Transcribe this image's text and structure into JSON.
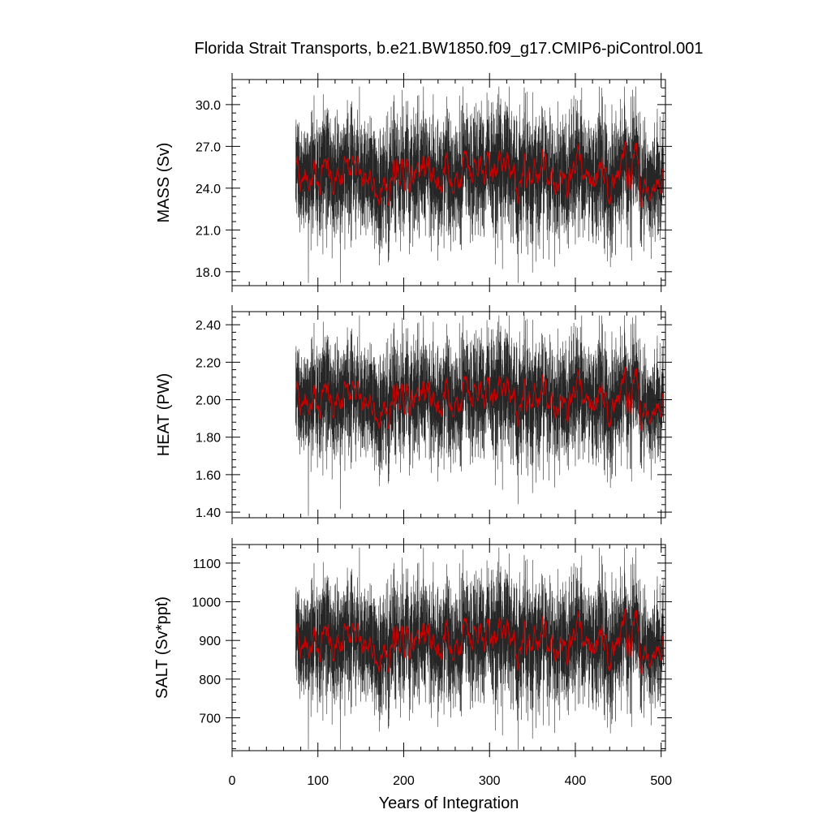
{
  "figure": {
    "title": "Florida Strait Transports, b.e21.BW1850.f09_g17.CMIP6-piControl.001",
    "xlabel": "Years of Integration"
  },
  "colors": {
    "raw_series": "#000000",
    "smoothed_series": "#cc0000",
    "frame": "#000000",
    "background": "#ffffff"
  },
  "chart_data": [
    {
      "type": "line",
      "ylabel": "MASS (Sv)",
      "xlim": [
        0,
        505
      ],
      "ylim": [
        17.0,
        31.8
      ],
      "xticks": [
        0,
        100,
        200,
        300,
        400,
        500
      ],
      "yticks": [
        18.0,
        21.0,
        24.0,
        27.0,
        30.0
      ],
      "ytick_labels": [
        "18.0",
        "21.0",
        "24.0",
        "27.0",
        "30.0"
      ],
      "x_start": 74,
      "x_end": 503,
      "mean": 25.2,
      "raw_spread": 2.1,
      "smooth_spread": 0.7,
      "raw_min": 17.2,
      "raw_max": 31.3,
      "series": [
        {
          "role": "raw",
          "name": ""
        },
        {
          "role": "smoothed",
          "name": ""
        }
      ],
      "grid": false
    },
    {
      "type": "line",
      "ylabel": "HEAT (PW)",
      "xlim": [
        0,
        505
      ],
      "ylim": [
        1.37,
        2.47
      ],
      "xticks": [
        0,
        100,
        200,
        300,
        400,
        500
      ],
      "yticks": [
        1.4,
        1.6,
        1.8,
        2.0,
        2.2,
        2.4
      ],
      "ytick_labels": [
        "1.40",
        "1.60",
        "1.80",
        "2.00",
        "2.20",
        "2.40"
      ],
      "x_start": 74,
      "x_end": 503,
      "mean": 2.02,
      "raw_spread": 0.15,
      "smooth_spread": 0.05,
      "raw_min": 1.38,
      "raw_max": 2.45,
      "series": [
        {
          "role": "raw",
          "name": ""
        },
        {
          "role": "smoothed",
          "name": ""
        }
      ],
      "grid": false
    },
    {
      "type": "line",
      "ylabel": "SALT (Sv*ppt)",
      "xlim": [
        0,
        505
      ],
      "ylim": [
        615,
        1148
      ],
      "xticks": [
        0,
        100,
        200,
        300,
        400,
        500
      ],
      "yticks": [
        700,
        800,
        900,
        1000,
        1100
      ],
      "ytick_labels": [
        "700",
        "800",
        "900",
        "1000",
        "1100"
      ],
      "x_start": 74,
      "x_end": 503,
      "mean": 905,
      "raw_spread": 75,
      "smooth_spread": 25,
      "raw_min": 618,
      "raw_max": 1140,
      "series": [
        {
          "role": "raw",
          "name": ""
        },
        {
          "role": "smoothed",
          "name": ""
        }
      ],
      "grid": false
    }
  ]
}
